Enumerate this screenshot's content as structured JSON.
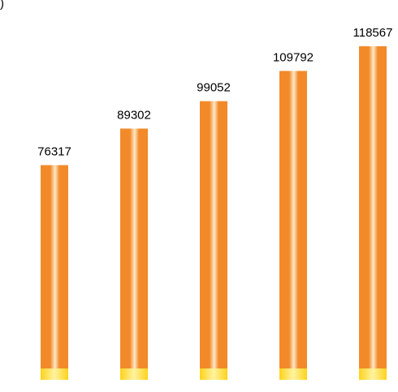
{
  "corner_text": ")",
  "chart_data": {
    "type": "bar",
    "title": "",
    "xlabel": "",
    "ylabel": "",
    "categories": [
      "",
      "",
      "",
      "",
      ""
    ],
    "values": [
      76317,
      89302,
      99052,
      109792,
      118567
    ],
    "data_labels": [
      "76317",
      "89302",
      "99052",
      "109792",
      "118567"
    ],
    "axes_visible": false,
    "grid": false,
    "colors": {
      "bar_main": "#F28A2A",
      "bar_highlight": "#FFE9C8",
      "bar_base": "#FFD21A"
    }
  }
}
